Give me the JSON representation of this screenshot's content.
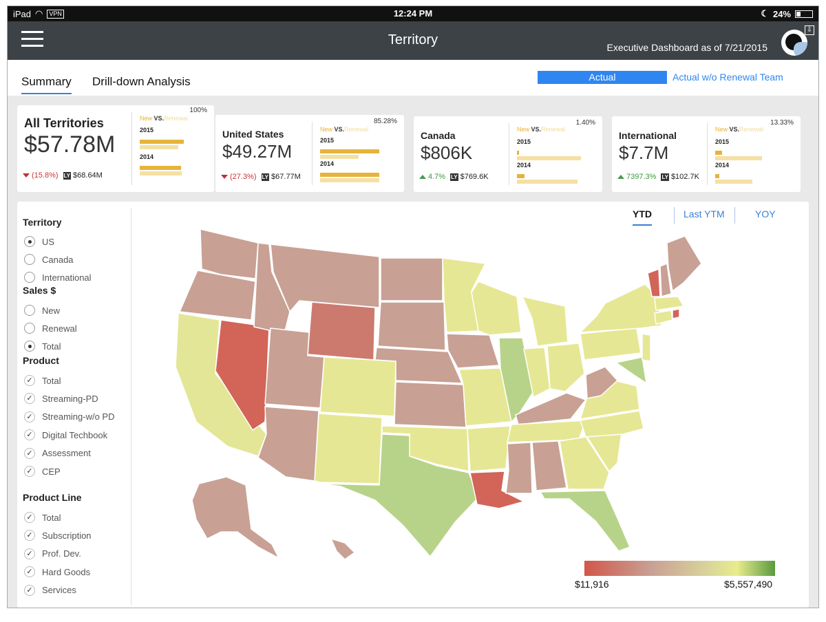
{
  "status_bar": {
    "device": "iPad",
    "vpn": "VPN",
    "time": "12:24 PM",
    "battery": "24%"
  },
  "header": {
    "title": "Territory",
    "as_of_label": "Executive Dashboard as of",
    "as_of_date": "7/21/2015"
  },
  "tabs": {
    "summary": "Summary",
    "drill": "Drill-down Analysis"
  },
  "view_toggle": {
    "actual": "Actual",
    "without_renewal": "Actual w/o Renewal Team"
  },
  "legend_labels": {
    "new": "New",
    "vs": "VS.",
    "renewal": "Renewal",
    "y2015": "2015",
    "y2014": "2014",
    "ly": "LY"
  },
  "cards": [
    {
      "name": "All Territories",
      "value": "$57.78M",
      "change": "(15.8%)",
      "direction": "down",
      "last_year": "$68.64M",
      "percent": "100%",
      "bars": {
        "new_2015": 0.85,
        "renewal_2015": 0.75,
        "new_2014": 0.8,
        "renewal_2014": 0.82
      }
    },
    {
      "name": "United States",
      "value": "$49.27M",
      "change": "(27.3%)",
      "direction": "down",
      "last_year": "$67.77M",
      "percent": "85.28%",
      "bars": {
        "new_2015": 0.95,
        "renewal_2015": 0.62,
        "new_2014": 0.95,
        "renewal_2014": 0.95
      }
    },
    {
      "name": "Canada",
      "value": "$806K",
      "change": "4.7%",
      "direction": "up",
      "last_year": "$769.6K",
      "percent": "1.40%",
      "bars": {
        "new_2015": 0.03,
        "renewal_2015": 1.0,
        "new_2014": 0.12,
        "renewal_2014": 0.95
      }
    },
    {
      "name": "International",
      "value": "$7.7M",
      "change": "7397.3%",
      "direction": "up",
      "last_year": "$102.7K",
      "percent": "13.33%",
      "bars": {
        "new_2015": 0.13,
        "renewal_2015": 0.85,
        "new_2014": 0.08,
        "renewal_2014": 0.68
      }
    }
  ],
  "filters": {
    "territory": {
      "label": "Territory",
      "options": [
        "US",
        "Canada",
        "International"
      ],
      "selected": "US"
    },
    "sales": {
      "label": "Sales $",
      "options": [
        "New",
        "Renewal",
        "Total"
      ],
      "selected": "Total"
    },
    "product": {
      "label": "Product",
      "options": [
        "Total",
        "Streaming-PD",
        "Streaming-w/o PD",
        "Digital Techbook",
        "Assessment",
        "CEP"
      ]
    },
    "product_line": {
      "label": "Product Line",
      "options": [
        "Total",
        "Subscription",
        "Prof. Dev.",
        "Hard Goods",
        "Services"
      ]
    }
  },
  "time_tabs": {
    "ytd": "YTD",
    "last_ytm": "Last YTM",
    "yoy": "YOY",
    "selected": "YTD"
  },
  "color_scale": {
    "min": "$11,916",
    "max": "$5,557,490",
    "colors": [
      "#d1574a",
      "#c8a094",
      "#e8ec8c",
      "#5a9a3f"
    ]
  }
}
